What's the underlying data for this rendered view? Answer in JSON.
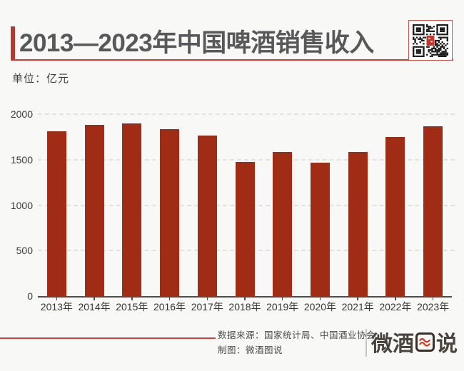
{
  "header": {
    "title": "2013—2023年中国啤酒销售收入",
    "unit_label": "单位：亿元"
  },
  "chart_data": {
    "type": "bar",
    "title": "2013—2023年中国啤酒销售收入",
    "ylabel": "亿元",
    "xlabel": "",
    "categories": [
      "2013年",
      "2014年",
      "2015年",
      "2016年",
      "2017年",
      "2018年",
      "2019年",
      "2020年",
      "2021年",
      "2022年",
      "2023年"
    ],
    "values": [
      1814,
      1886,
      1897,
      1833,
      1766,
      1472,
      1581,
      1469,
      1585,
      1751,
      1863
    ],
    "ylim": [
      0,
      2000
    ],
    "yticks": [
      0,
      500,
      1000,
      1500,
      2000
    ],
    "grid": "horizontal-dashed",
    "legend": "none",
    "bar_color": "#A02C15"
  },
  "footer": {
    "source_label": "数据来源：国家统计局、中国酒业协会",
    "credit_label": "制图：微酒图说",
    "logo": {
      "left": "微酒",
      "right": "说",
      "full": "微酒图说"
    }
  },
  "icons": {
    "qr": "qr-code-icon",
    "logo_box": "red-waves-icon"
  },
  "colors": {
    "background": "#F8F8F6",
    "bar": "#A02C15",
    "title_text": "#58575A",
    "title_accent": "#B23A32",
    "title_underline": "#C1443C",
    "footer_line": "#C4433C",
    "qr_border": "#C5524B",
    "qr_center_logo": "#C43429",
    "logo_text": "#4A443F",
    "logo_wave": "#CE3A28"
  }
}
